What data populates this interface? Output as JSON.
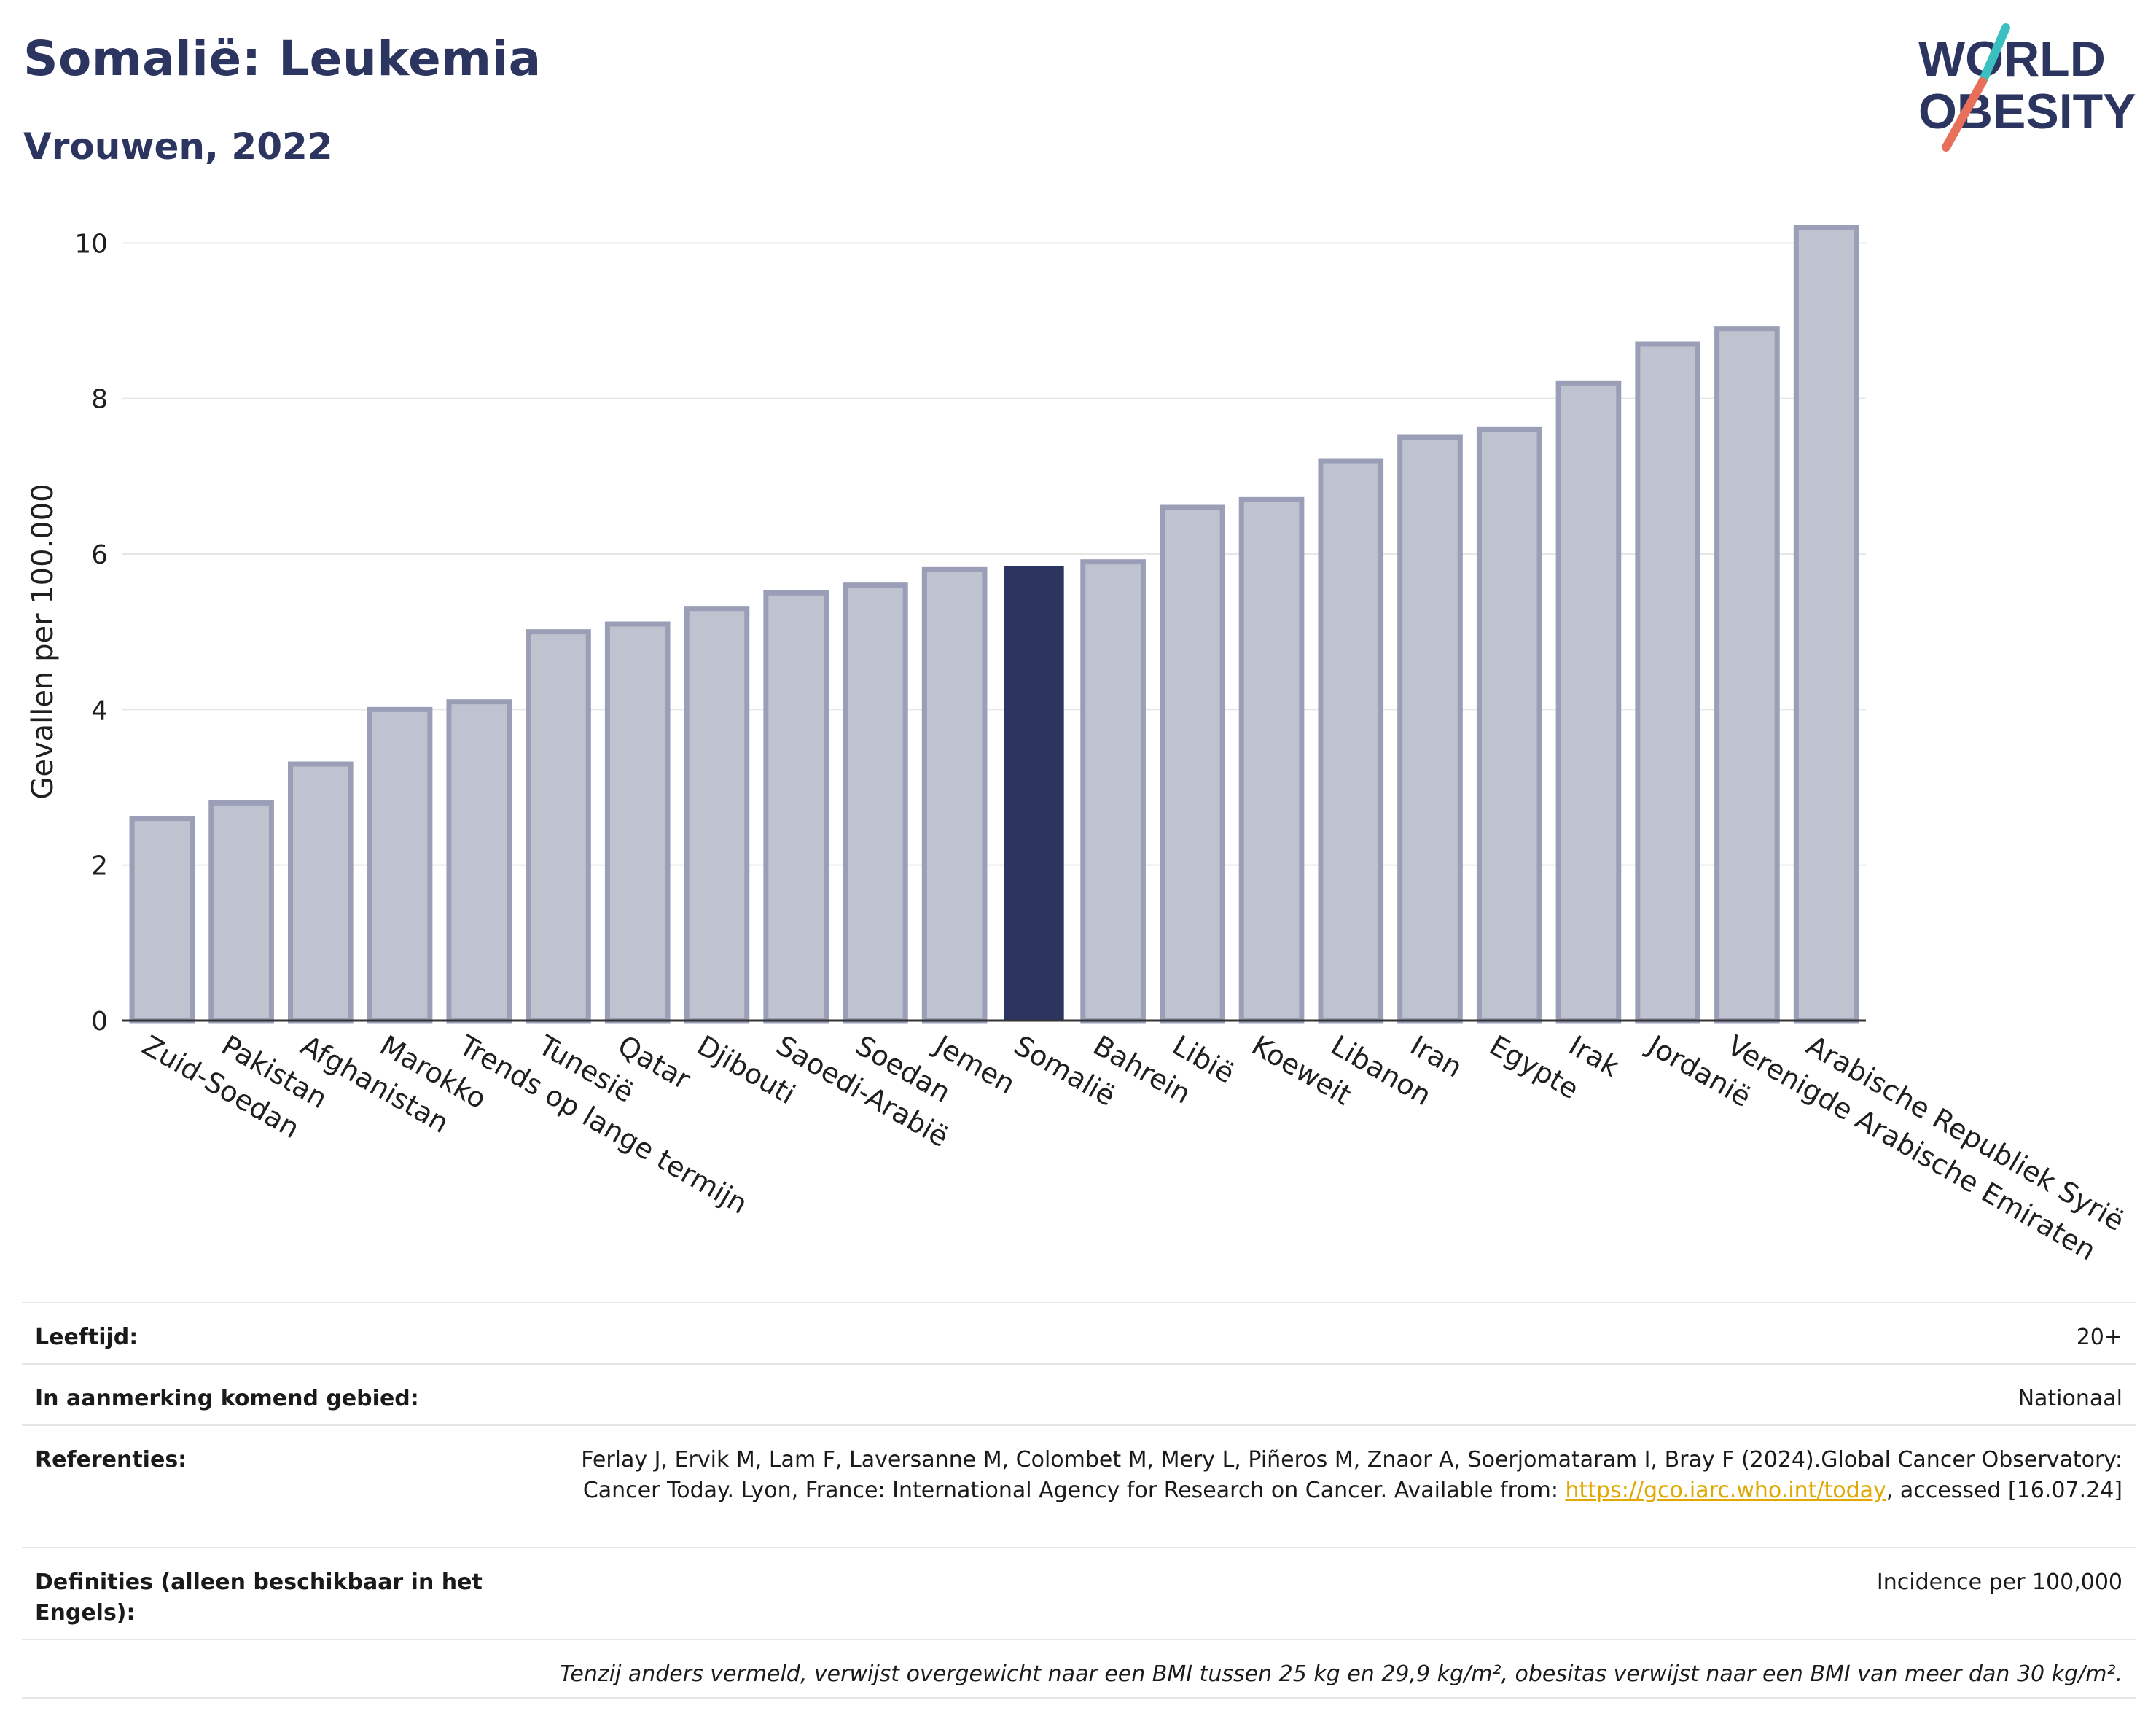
{
  "header": {
    "title": "Somalië: Leukemia",
    "subtitle": "Vrouwen, 2022"
  },
  "logo": {
    "line1": "WORLD",
    "line2": "OBESITY",
    "accent_colors": [
      "#3bbfbf",
      "#e8705a"
    ]
  },
  "chart_data": {
    "type": "bar",
    "ylabel": "Gevallen per 100.000",
    "xlabel": "",
    "ylim": [
      0,
      10.5
    ],
    "yticks": [
      0,
      2,
      4,
      6,
      8,
      10
    ],
    "grid": true,
    "highlight": "Somalië",
    "colors": {
      "bar": "#bfc2cf",
      "bar_edge": "#9a9eb6",
      "highlight": "#2c3560"
    },
    "categories": [
      "Zuid-Soedan",
      "Pakistan",
      "Afghanistan",
      "Marokko",
      "Trends op lange termijn",
      "Tunesië",
      "Qatar",
      "Djibouti",
      "Saoedi-Arabië",
      "Soedan",
      "Jemen",
      "Somalië",
      "Bahrein",
      "Libië",
      "Koeweit",
      "Libanon",
      "Iran",
      "Egypte",
      "Irak",
      "Jordanië",
      "Verenigde Arabische Emiraten",
      "Arabische Republiek Syrië"
    ],
    "values": [
      2.6,
      2.8,
      3.3,
      4.0,
      4.1,
      5.0,
      5.1,
      5.3,
      5.5,
      5.6,
      5.8,
      5.85,
      5.9,
      6.6,
      6.7,
      7.2,
      7.5,
      7.6,
      8.2,
      8.7,
      8.9,
      10.2
    ]
  },
  "meta": {
    "age_label": "Leeftijd:",
    "age_value": "20+",
    "area_label": "In aanmerking komend gebied:",
    "area_value": "Nationaal",
    "ref_label": "Referenties:",
    "ref_text_1": "Ferlay J, Ervik M, Lam F, Laversanne M, Colombet M, Mery L, Piñeros M, Znaor A, Soerjomataram I, Bray F (2024).Global Cancer Observatory: Cancer Today. Lyon, France: International Agency for Research on Cancer. Available from: ",
    "ref_link": "https://gco.iarc.who.int/today",
    "ref_text_2": ", accessed [16.07.24]",
    "def_label": "Definities (alleen beschikbaar in het Engels):",
    "def_value": "Incidence per 100,000",
    "footnote": "Tenzij anders vermeld, verwijst overgewicht naar een BMI tussen 25 kg en 29,9 kg/m², obesitas verwijst naar een BMI van meer dan 30 kg/m²."
  }
}
